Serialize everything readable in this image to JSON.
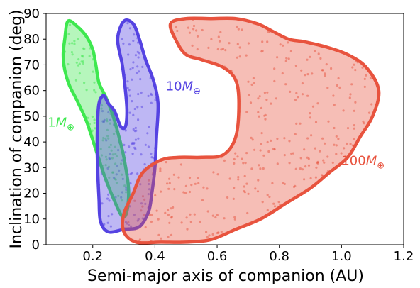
{
  "chart_data": {
    "type": "scatter",
    "xlabel": "Semi-major axis of companion (AU)",
    "ylabel": "Inclination of companion (deg)",
    "xlim": [
      0.05,
      1.2
    ],
    "ylim": [
      0,
      90
    ],
    "xticks": [
      0.2,
      0.4,
      0.6,
      0.8,
      1.0,
      1.2
    ],
    "yticks": [
      0,
      10,
      20,
      30,
      40,
      50,
      60,
      70,
      80,
      90
    ],
    "xtick_labels": [
      "0.2",
      "0.4",
      "0.6",
      "0.8",
      "1.0",
      "1.2"
    ],
    "ytick_labels": [
      "0",
      "10",
      "20",
      "30",
      "40",
      "50",
      "60",
      "70",
      "80",
      "90"
    ],
    "grid": false,
    "legend": "none",
    "series": [
      {
        "annotation": "1M",
        "subscript": "⊕",
        "color": "#3ee84f",
        "point_count": 90,
        "contour": [
          [
            0.12,
            87
          ],
          [
            0.15,
            85
          ],
          [
            0.18,
            81
          ],
          [
            0.2,
            76
          ],
          [
            0.21,
            70
          ],
          [
            0.22,
            63
          ],
          [
            0.24,
            58
          ],
          [
            0.26,
            52
          ],
          [
            0.28,
            44
          ],
          [
            0.3,
            34
          ],
          [
            0.315,
            22
          ],
          [
            0.31,
            13
          ],
          [
            0.295,
            11
          ],
          [
            0.27,
            17
          ],
          [
            0.24,
            26
          ],
          [
            0.21,
            37
          ],
          [
            0.18,
            48
          ],
          [
            0.15,
            56
          ],
          [
            0.125,
            62
          ],
          [
            0.11,
            68
          ],
          [
            0.105,
            74
          ],
          [
            0.11,
            80
          ]
        ]
      },
      {
        "annotation": "10M",
        "subscript": "⊕",
        "color": "#5543e2",
        "point_count": 160,
        "contour": [
          [
            0.235,
            58
          ],
          [
            0.25,
            55
          ],
          [
            0.27,
            52
          ],
          [
            0.29,
            46
          ],
          [
            0.305,
            46
          ],
          [
            0.31,
            52
          ],
          [
            0.305,
            60
          ],
          [
            0.295,
            70
          ],
          [
            0.28,
            80
          ],
          [
            0.3,
            87
          ],
          [
            0.33,
            86
          ],
          [
            0.35,
            80
          ],
          [
            0.37,
            72
          ],
          [
            0.395,
            64
          ],
          [
            0.41,
            55
          ],
          [
            0.405,
            42
          ],
          [
            0.4,
            30
          ],
          [
            0.39,
            20
          ],
          [
            0.38,
            13
          ],
          [
            0.35,
            7
          ],
          [
            0.3,
            6
          ],
          [
            0.25,
            5
          ],
          [
            0.225,
            9
          ],
          [
            0.22,
            18
          ],
          [
            0.215,
            32
          ],
          [
            0.215,
            46
          ],
          [
            0.22,
            55
          ]
        ]
      },
      {
        "annotation": "100M",
        "subscript": "⊕",
        "color": "#e8533e",
        "point_count": 330,
        "contour": [
          [
            0.45,
            86
          ],
          [
            0.5,
            88
          ],
          [
            0.58,
            88
          ],
          [
            0.66,
            88
          ],
          [
            0.73,
            86
          ],
          [
            0.78,
            83
          ],
          [
            0.83,
            80
          ],
          [
            0.88,
            79
          ],
          [
            0.95,
            77
          ],
          [
            1.02,
            74
          ],
          [
            1.08,
            69
          ],
          [
            1.12,
            60
          ],
          [
            1.1,
            50
          ],
          [
            1.06,
            42
          ],
          [
            1.02,
            34
          ],
          [
            0.96,
            28
          ],
          [
            0.9,
            22
          ],
          [
            0.82,
            16
          ],
          [
            0.74,
            10
          ],
          [
            0.66,
            6
          ],
          [
            0.58,
            2
          ],
          [
            0.5,
            1
          ],
          [
            0.42,
            1
          ],
          [
            0.34,
            1
          ],
          [
            0.3,
            5
          ],
          [
            0.3,
            12
          ],
          [
            0.33,
            20
          ],
          [
            0.36,
            28
          ],
          [
            0.42,
            33
          ],
          [
            0.48,
            34
          ],
          [
            0.55,
            34
          ],
          [
            0.62,
            35
          ],
          [
            0.66,
            42
          ],
          [
            0.67,
            55
          ],
          [
            0.66,
            64
          ],
          [
            0.62,
            69
          ],
          [
            0.55,
            72
          ],
          [
            0.5,
            74
          ],
          [
            0.47,
            79
          ]
        ]
      }
    ]
  }
}
